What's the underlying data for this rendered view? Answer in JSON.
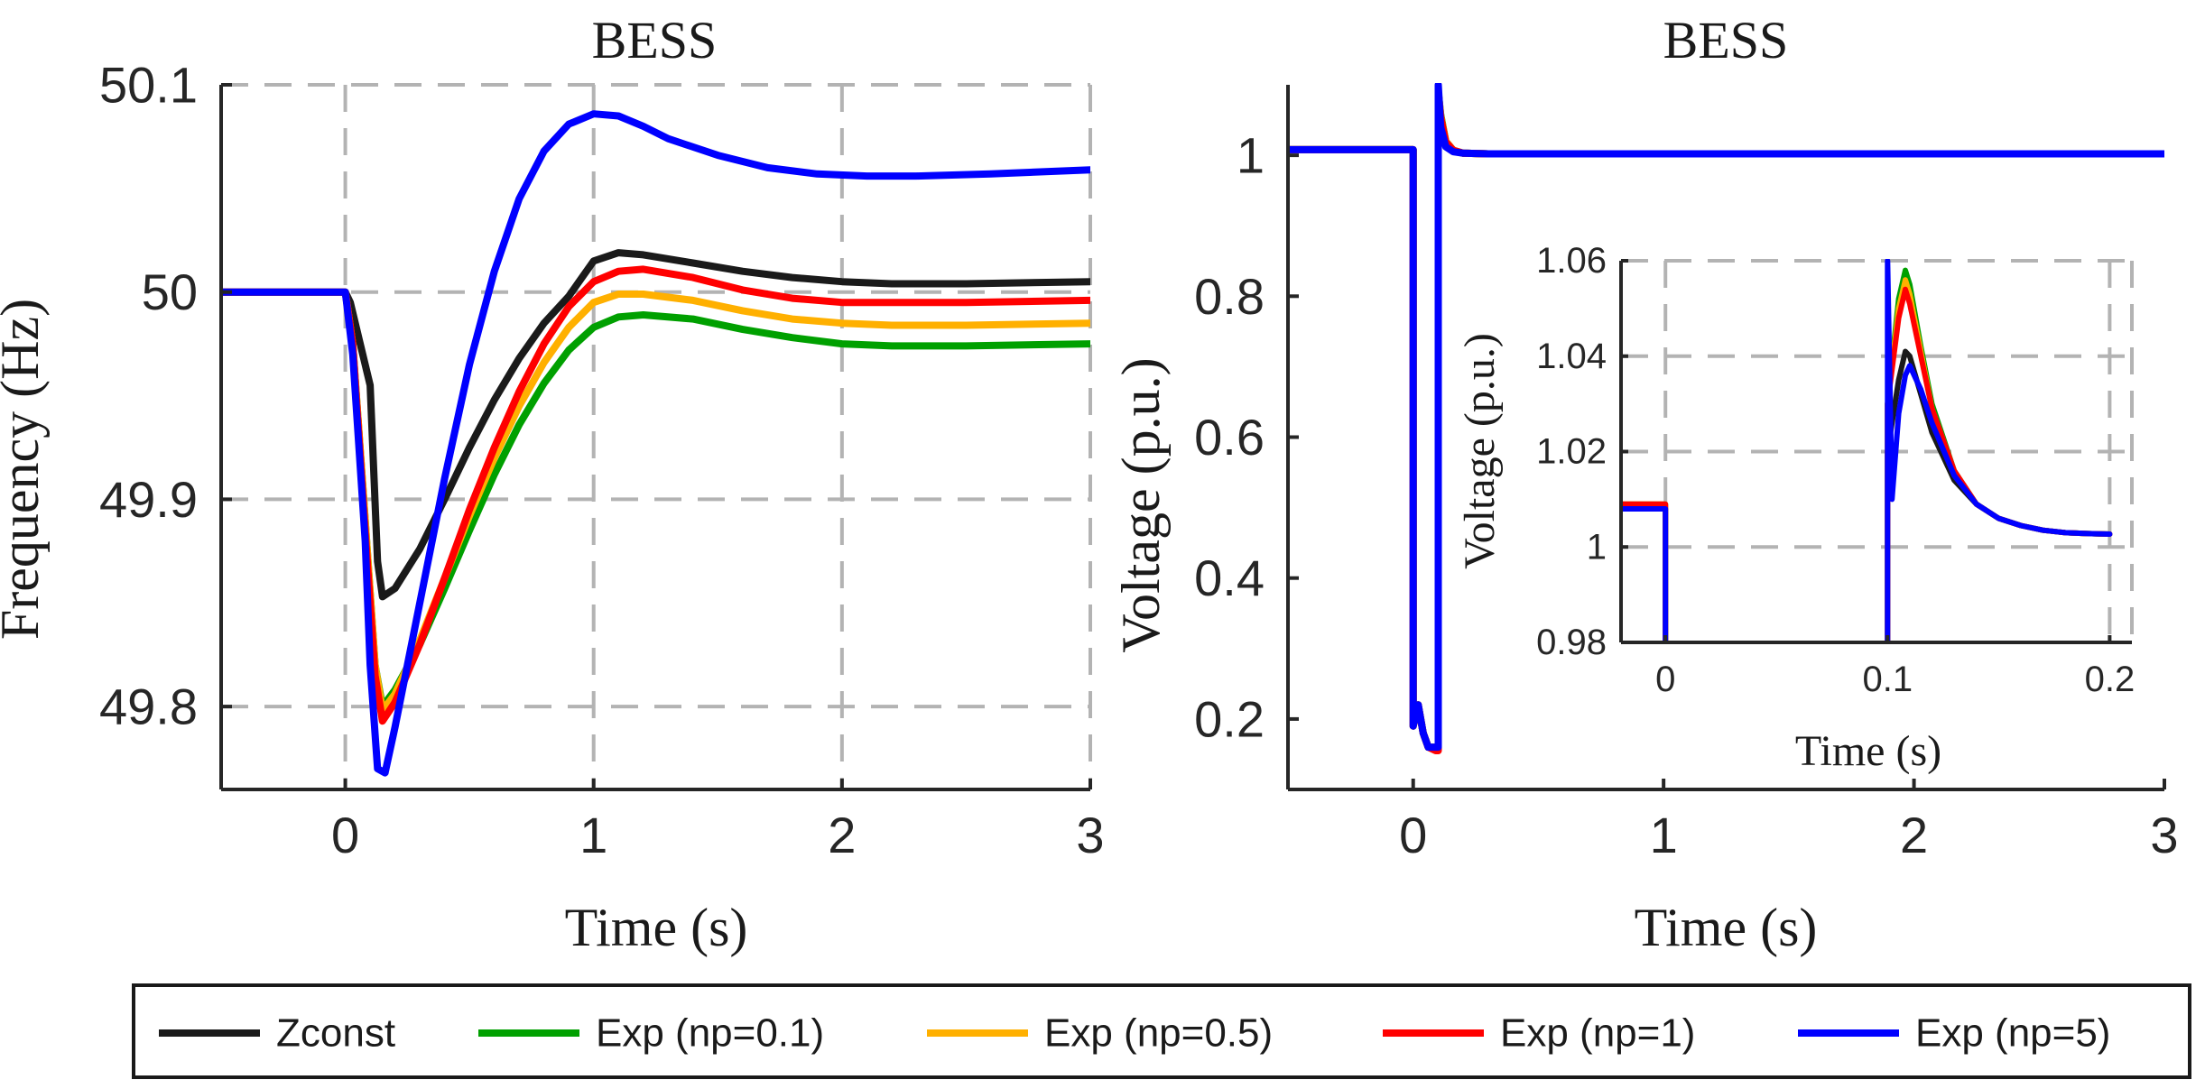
{
  "chart_data": [
    {
      "type": "line",
      "title": "BESS",
      "xlabel": "Time (s)",
      "ylabel": "Frequency (Hz)",
      "xlim": [
        -0.5,
        3
      ],
      "ylim": [
        49.76,
        50.1
      ],
      "xticks": [
        0,
        1,
        2,
        3
      ],
      "yticks": [
        49.8,
        49.9,
        50,
        50.1
      ],
      "xtick_labels": [
        "0",
        "1",
        "2",
        "3"
      ],
      "ytick_labels": [
        "49.8",
        "49.9",
        "50",
        "50.1"
      ],
      "grid": true,
      "series": [
        {
          "name": "Zconst",
          "color": "#1a1a1a",
          "x": [
            -0.5,
            0.0,
            0.02,
            0.1,
            0.13,
            0.15,
            0.2,
            0.3,
            0.4,
            0.5,
            0.6,
            0.7,
            0.8,
            0.9,
            1.0,
            1.1,
            1.2,
            1.4,
            1.6,
            1.8,
            2.0,
            2.2,
            2.5,
            3.0
          ],
          "y": [
            50.0,
            50.0,
            49.995,
            49.955,
            49.87,
            49.853,
            49.857,
            49.876,
            49.9,
            49.925,
            49.948,
            49.968,
            49.985,
            49.998,
            50.015,
            50.019,
            50.018,
            50.014,
            50.01,
            50.007,
            50.005,
            50.004,
            50.004,
            50.005
          ]
        },
        {
          "name": "Exp (np=0.1)",
          "color": "#00a000",
          "x": [
            -0.5,
            0.0,
            0.03,
            0.08,
            0.12,
            0.15,
            0.2,
            0.3,
            0.4,
            0.5,
            0.6,
            0.7,
            0.8,
            0.9,
            1.0,
            1.1,
            1.2,
            1.4,
            1.6,
            1.8,
            2.0,
            2.2,
            2.5,
            3.0
          ],
          "y": [
            50.0,
            50.0,
            49.975,
            49.89,
            49.82,
            49.8,
            49.808,
            49.83,
            49.857,
            49.885,
            49.912,
            49.936,
            49.956,
            49.972,
            49.983,
            49.988,
            49.989,
            49.987,
            49.982,
            49.978,
            49.975,
            49.974,
            49.974,
            49.975
          ]
        },
        {
          "name": "Exp (np=0.5)",
          "color": "#ffb000",
          "x": [
            -0.5,
            0.0,
            0.03,
            0.08,
            0.12,
            0.15,
            0.2,
            0.3,
            0.4,
            0.5,
            0.6,
            0.7,
            0.8,
            0.9,
            1.0,
            1.1,
            1.2,
            1.4,
            1.6,
            1.8,
            2.0,
            2.2,
            2.5,
            3.0
          ],
          "y": [
            50.0,
            50.0,
            49.975,
            49.89,
            49.82,
            49.798,
            49.806,
            49.832,
            49.862,
            49.892,
            49.92,
            49.945,
            49.966,
            49.983,
            49.995,
            49.999,
            49.999,
            49.996,
            49.991,
            49.987,
            49.985,
            49.984,
            49.984,
            49.985
          ]
        },
        {
          "name": "Exp (np=1)",
          "color": "#ff0000",
          "x": [
            -0.5,
            0.0,
            0.03,
            0.08,
            0.12,
            0.15,
            0.2,
            0.3,
            0.4,
            0.5,
            0.6,
            0.7,
            0.8,
            0.9,
            1.0,
            1.1,
            1.2,
            1.4,
            1.6,
            1.8,
            2.0,
            2.2,
            2.5,
            3.0
          ],
          "y": [
            50.0,
            50.0,
            49.975,
            49.885,
            49.815,
            49.793,
            49.802,
            49.83,
            49.862,
            49.895,
            49.925,
            49.952,
            49.975,
            49.993,
            50.005,
            50.01,
            50.011,
            50.007,
            50.001,
            49.997,
            49.995,
            49.995,
            49.995,
            49.996
          ]
        },
        {
          "name": "Exp (np=5)",
          "color": "#0000ff",
          "x": [
            -0.5,
            0.0,
            0.03,
            0.08,
            0.1,
            0.13,
            0.16,
            0.2,
            0.3,
            0.4,
            0.5,
            0.6,
            0.7,
            0.8,
            0.9,
            1.0,
            1.1,
            1.2,
            1.3,
            1.5,
            1.7,
            1.9,
            2.1,
            2.3,
            2.6,
            3.0
          ],
          "y": [
            50.0,
            50.0,
            49.97,
            49.88,
            49.82,
            49.77,
            49.768,
            49.79,
            49.85,
            49.91,
            49.965,
            50.01,
            50.045,
            50.068,
            50.081,
            50.086,
            50.085,
            50.08,
            50.074,
            50.066,
            50.06,
            50.057,
            50.056,
            50.056,
            50.057,
            50.059
          ]
        }
      ]
    },
    {
      "type": "line",
      "title": "BESS",
      "xlabel": "Time (s)",
      "ylabel": "Voltage (p.u.)",
      "xlim": [
        -0.5,
        3
      ],
      "ylim": [
        0.1,
        1.1
      ],
      "xticks": [
        0,
        1,
        2,
        3
      ],
      "yticks": [
        0.2,
        0.4,
        0.6,
        0.8,
        1
      ],
      "xtick_labels": [
        "0",
        "1",
        "2",
        "3"
      ],
      "ytick_labels": [
        "0.2",
        "0.4",
        "0.6",
        "0.8",
        "1"
      ],
      "grid": false,
      "series": [
        {
          "name": "Zconst",
          "color": "#1a1a1a",
          "x": [
            -0.5,
            0.0,
            0.0,
            0.02,
            0.04,
            0.06,
            0.09,
            0.1,
            0.1,
            0.11,
            0.13,
            0.16,
            0.2,
            0.3,
            3.0
          ],
          "y": [
            1.008,
            1.008,
            0.19,
            0.22,
            0.18,
            0.16,
            0.16,
            0.16,
            1.09,
            1.045,
            1.015,
            1.006,
            1.003,
            1.002,
            1.002
          ]
        },
        {
          "name": "Exp (np=0.1)",
          "color": "#00a000",
          "x": [
            -0.5,
            0.0,
            0.0,
            0.02,
            0.04,
            0.06,
            0.09,
            0.1,
            0.1,
            0.11,
            0.13,
            0.16,
            0.2,
            0.3,
            3.0
          ],
          "y": [
            1.008,
            1.008,
            0.19,
            0.22,
            0.18,
            0.16,
            0.16,
            0.16,
            1.09,
            1.058,
            1.02,
            1.007,
            1.003,
            1.002,
            1.002
          ]
        },
        {
          "name": "Exp (np=0.5)",
          "color": "#ffb000",
          "x": [
            -0.5,
            0.0,
            0.0,
            0.02,
            0.04,
            0.06,
            0.09,
            0.1,
            0.1,
            0.11,
            0.13,
            0.16,
            0.2,
            0.3,
            3.0
          ],
          "y": [
            1.008,
            1.008,
            0.19,
            0.22,
            0.18,
            0.16,
            0.16,
            0.16,
            1.09,
            1.056,
            1.02,
            1.007,
            1.003,
            1.002,
            1.002
          ]
        },
        {
          "name": "Exp (np=1)",
          "color": "#ff0000",
          "x": [
            -0.5,
            0.0,
            0.0,
            0.02,
            0.04,
            0.06,
            0.09,
            0.1,
            0.1,
            0.11,
            0.13,
            0.16,
            0.2,
            0.3,
            3.0
          ],
          "y": [
            1.008,
            1.008,
            0.19,
            0.22,
            0.18,
            0.16,
            0.155,
            0.155,
            1.09,
            1.054,
            1.019,
            1.007,
            1.003,
            1.002,
            1.002
          ]
        },
        {
          "name": "Exp (np=5)",
          "color": "#0000ff",
          "x": [
            -0.5,
            0.0,
            0.0,
            0.02,
            0.04,
            0.06,
            0.09,
            0.1,
            0.1,
            0.11,
            0.13,
            0.16,
            0.2,
            0.3,
            3.0
          ],
          "y": [
            1.008,
            1.008,
            0.19,
            0.22,
            0.18,
            0.16,
            0.16,
            0.16,
            1.1,
            1.04,
            1.012,
            1.005,
            1.003,
            1.002,
            1.002
          ]
        }
      ]
    },
    {
      "type": "line",
      "title": "",
      "xlabel": "Time (s)",
      "ylabel": "Voltage (p.u.)",
      "xlim": [
        -0.02,
        0.21
      ],
      "ylim": [
        0.98,
        1.06
      ],
      "xticks": [
        0,
        0.1,
        0.2
      ],
      "yticks": [
        0.98,
        1.0,
        1.02,
        1.04,
        1.06
      ],
      "xtick_labels": [
        "0",
        "0.1",
        "0.2"
      ],
      "ytick_labels": [
        "0.98",
        "1",
        "1.02",
        "1.04",
        "1.06"
      ],
      "grid": true,
      "series": [
        {
          "name": "Zconst",
          "color": "#1a1a1a",
          "x": [
            -0.02,
            0.0,
            0.0,
            0.1,
            0.1,
            0.105,
            0.108,
            0.11,
            0.115,
            0.12,
            0.13,
            0.14,
            0.15,
            0.16,
            0.17,
            0.18,
            0.19,
            0.2
          ],
          "y": [
            1.008,
            1.008,
            0.975,
            0.975,
            1.02,
            1.035,
            1.041,
            1.04,
            1.032,
            1.024,
            1.014,
            1.009,
            1.006,
            1.0045,
            1.0035,
            1.003,
            1.0028,
            1.0027
          ]
        },
        {
          "name": "Exp (np=0.1)",
          "color": "#00a000",
          "x": [
            -0.02,
            0.0,
            0.0,
            0.1,
            0.1,
            0.105,
            0.108,
            0.11,
            0.115,
            0.12,
            0.13,
            0.14,
            0.15,
            0.16,
            0.17,
            0.18,
            0.19,
            0.2
          ],
          "y": [
            1.009,
            1.009,
            0.975,
            0.975,
            1.03,
            1.052,
            1.058,
            1.055,
            1.042,
            1.03,
            1.016,
            1.009,
            1.006,
            1.0045,
            1.0035,
            1.003,
            1.0028,
            1.0027
          ]
        },
        {
          "name": "Exp (np=0.5)",
          "color": "#ffb000",
          "x": [
            -0.02,
            0.0,
            0.0,
            0.1,
            0.1,
            0.105,
            0.108,
            0.11,
            0.115,
            0.12,
            0.13,
            0.14,
            0.15,
            0.16,
            0.17,
            0.18,
            0.19,
            0.2
          ],
          "y": [
            1.009,
            1.009,
            0.975,
            0.975,
            1.03,
            1.05,
            1.056,
            1.053,
            1.041,
            1.029,
            1.016,
            1.009,
            1.006,
            1.0045,
            1.0035,
            1.003,
            1.0028,
            1.0027
          ]
        },
        {
          "name": "Exp (np=1)",
          "color": "#ff0000",
          "x": [
            -0.02,
            0.0,
            0.0,
            0.1,
            0.1,
            0.105,
            0.108,
            0.11,
            0.115,
            0.12,
            0.13,
            0.14,
            0.15,
            0.16,
            0.17,
            0.18,
            0.19,
            0.2
          ],
          "y": [
            1.009,
            1.009,
            0.975,
            0.975,
            1.03,
            1.048,
            1.054,
            1.051,
            1.04,
            1.029,
            1.016,
            1.009,
            1.006,
            1.0045,
            1.0035,
            1.003,
            1.0028,
            1.0027
          ]
        },
        {
          "name": "Exp (np=5)",
          "color": "#0000ff",
          "x": [
            -0.02,
            0.0,
            0.0,
            0.1,
            0.1,
            0.102,
            0.105,
            0.108,
            0.11,
            0.115,
            0.12,
            0.13,
            0.14,
            0.15,
            0.16,
            0.17,
            0.18,
            0.19,
            0.2
          ],
          "y": [
            1.008,
            1.008,
            0.975,
            0.975,
            1.06,
            1.01,
            1.028,
            1.036,
            1.038,
            1.033,
            1.026,
            1.015,
            1.009,
            1.006,
            1.0045,
            1.0035,
            1.003,
            1.0028,
            1.0027
          ]
        }
      ]
    }
  ],
  "legend": {
    "placement": "bottom",
    "entries": [
      {
        "label": "Zconst",
        "color": "#1a1a1a"
      },
      {
        "label": "Exp (np=0.1)",
        "color": "#00a000"
      },
      {
        "label": "Exp (np=0.5)",
        "color": "#ffb000"
      },
      {
        "label": "Exp (np=1)",
        "color": "#ff0000"
      },
      {
        "label": "Exp (np=5)",
        "color": "#0000ff"
      }
    ]
  }
}
